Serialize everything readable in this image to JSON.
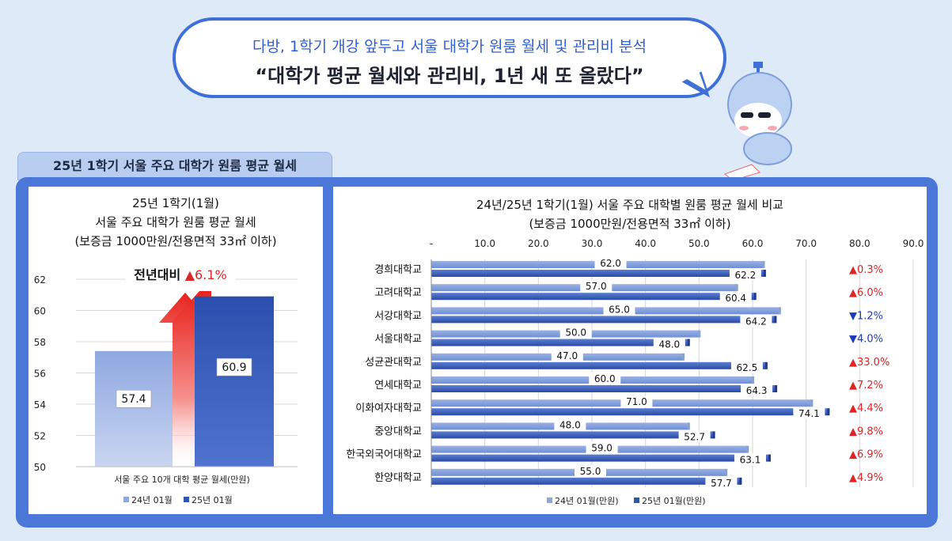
{
  "header": {
    "subtitle": "다방, 1학기 개강 앞두고 서울 대학가 원룸 월세 및 관리비 분석",
    "headline": "“대학가 평균 월세와 관리비, 1년 새 또 올랐다”",
    "section_tab": "25년 1학기 서울 주요 대학가 원룸 평균 월세"
  },
  "colors": {
    "accent": "#4b77d9",
    "bar_light": "#8ea7dc",
    "bar_dark": "#2f55b3",
    "up": "#e02424",
    "down": "#1d39b8"
  },
  "chart_data": [
    {
      "type": "bar",
      "title_lines": [
        "25년 1학기(1월)",
        "서울 주요 대학가 원룸 평균 월세",
        "(보증금 1000만원/전용면적 33㎡ 이하)"
      ],
      "categories": [
        "서울 주요 10개 대학 평균 월세(만원)"
      ],
      "series": [
        {
          "name": "24년 01월",
          "values": [
            57.4
          ]
        },
        {
          "name": "25년 01월",
          "values": [
            60.9
          ]
        }
      ],
      "ylim": [
        50,
        62
      ],
      "yticks": [
        50,
        52,
        54,
        56,
        58,
        60,
        62
      ],
      "annotation_label": "전년대비",
      "annotation_value": "▲6.1%",
      "grid": true,
      "legend": "bottom"
    },
    {
      "type": "bar",
      "orientation": "horizontal",
      "title_lines": [
        "24년/25년 1학기(1월) 서울 주요 대학별 원룸 평균 월세 비교",
        "(보증금 1000만원/전용면적 33㎡ 이하)"
      ],
      "categories": [
        "경희대학교",
        "고려대학교",
        "서강대학교",
        "서울대학교",
        "성균관대학교",
        "연세대학교",
        "이화여자대학교",
        "중앙대학교",
        "한국외국어대학교",
        "한양대학교"
      ],
      "series": [
        {
          "name": "24년 01월(만원)",
          "values": [
            62.0,
            57.0,
            65.0,
            50.0,
            47.0,
            60.0,
            71.0,
            48.0,
            59.0,
            55.0
          ]
        },
        {
          "name": "25년 01월(만원)",
          "values": [
            62.2,
            60.4,
            64.2,
            48.0,
            62.5,
            64.3,
            74.1,
            52.7,
            63.1,
            57.7
          ]
        }
      ],
      "changes": [
        "▲0.3%",
        "▲6.0%",
        "▼1.2%",
        "▼4.0%",
        "▲33.0%",
        "▲7.2%",
        "▲4.4%",
        "▲9.8%",
        "▲6.9%",
        "▲4.9%"
      ],
      "change_dirs": [
        "up",
        "up",
        "down",
        "down",
        "up",
        "up",
        "up",
        "up",
        "up",
        "up"
      ],
      "xlim": [
        0,
        90
      ],
      "xtick_labels": [
        "-",
        "10.0",
        "20.0",
        "30.0",
        "40.0",
        "50.0",
        "60.0",
        "70.0",
        "80.0",
        "90.0"
      ],
      "grid": true,
      "legend": "bottom"
    }
  ]
}
